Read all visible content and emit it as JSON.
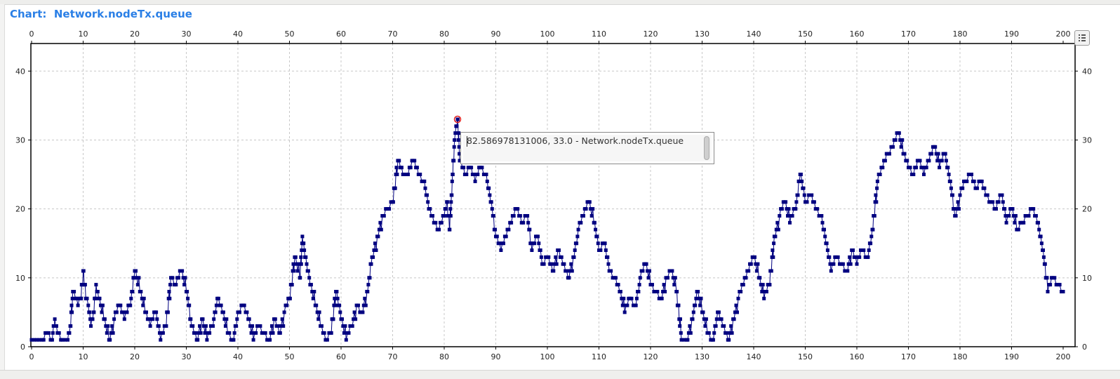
{
  "window": {
    "title_prefix": "Chart:",
    "title_name": "Network.nodeTx.queue"
  },
  "tooltip": {
    "text": "82.586978131006, 33.0 - Network.nodeTx.queue"
  },
  "legend_button": {
    "icon": "list-icon"
  },
  "colors": {
    "series": "#000080",
    "title": "#2a7fe6",
    "highlight": "#e02020",
    "grid": "#c8c8c8"
  },
  "chart_data": {
    "type": "line",
    "title": "Network.nodeTx.queue",
    "xlim": [
      0,
      200
    ],
    "ylim": [
      0,
      44
    ],
    "x_ticks": [
      0,
      10,
      20,
      30,
      40,
      50,
      60,
      70,
      80,
      90,
      100,
      110,
      120,
      130,
      140,
      150,
      160,
      170,
      180,
      190,
      200
    ],
    "y_ticks": [
      0,
      10,
      20,
      30,
      40
    ],
    "grid": true,
    "axes": "top-bottom-left-right",
    "highlight_point": {
      "x": 82.586978131006,
      "y": 33.0
    },
    "series": [
      {
        "name": "Network.nodeTx.queue",
        "markers": "square",
        "points": [
          [
            0,
            1
          ],
          [
            2,
            1
          ],
          [
            3,
            2
          ],
          [
            4,
            1
          ],
          [
            4.5,
            4
          ],
          [
            5,
            2
          ],
          [
            6,
            1
          ],
          [
            7,
            1
          ],
          [
            7.5,
            3
          ],
          [
            8,
            8
          ],
          [
            8.5,
            7
          ],
          [
            9,
            6
          ],
          [
            9.5,
            7
          ],
          [
            10,
            11
          ],
          [
            10.5,
            7
          ],
          [
            11,
            6
          ],
          [
            11.5,
            3
          ],
          [
            12,
            5
          ],
          [
            12.5,
            9
          ],
          [
            13,
            7
          ],
          [
            14,
            4
          ],
          [
            15,
            1
          ],
          [
            16,
            4
          ],
          [
            17,
            6
          ],
          [
            18,
            4
          ],
          [
            19,
            6
          ],
          [
            20,
            11
          ],
          [
            21,
            8
          ],
          [
            22,
            5
          ],
          [
            23,
            3
          ],
          [
            24,
            5
          ],
          [
            25,
            1
          ],
          [
            26,
            3
          ],
          [
            27,
            10
          ],
          [
            28,
            9
          ],
          [
            29,
            11
          ],
          [
            30,
            8
          ],
          [
            31,
            3
          ],
          [
            32,
            1
          ],
          [
            33,
            4
          ],
          [
            34,
            1
          ],
          [
            35,
            3
          ],
          [
            36,
            7
          ],
          [
            37,
            5
          ],
          [
            38,
            2
          ],
          [
            39,
            1
          ],
          [
            40,
            5
          ],
          [
            41,
            6
          ],
          [
            42,
            4
          ],
          [
            43,
            1
          ],
          [
            44,
            3
          ],
          [
            45,
            2
          ],
          [
            46,
            1
          ],
          [
            47,
            4
          ],
          [
            48,
            2
          ],
          [
            49,
            5
          ],
          [
            50,
            7
          ],
          [
            51,
            13
          ],
          [
            52,
            10
          ],
          [
            52.5,
            16
          ],
          [
            53,
            13
          ],
          [
            54,
            9
          ],
          [
            55,
            6
          ],
          [
            56,
            3
          ],
          [
            57,
            1
          ],
          [
            58,
            2
          ],
          [
            59,
            8
          ],
          [
            60,
            4
          ],
          [
            61,
            1
          ],
          [
            62,
            3
          ],
          [
            63,
            6
          ],
          [
            64,
            5
          ],
          [
            65,
            8
          ],
          [
            66,
            13
          ],
          [
            67,
            16
          ],
          [
            68,
            19
          ],
          [
            69,
            20
          ],
          [
            70,
            21
          ],
          [
            71,
            27
          ],
          [
            72,
            25
          ],
          [
            73,
            25
          ],
          [
            74,
            27
          ],
          [
            75,
            25
          ],
          [
            76,
            24
          ],
          [
            77,
            20
          ],
          [
            78,
            18
          ],
          [
            79,
            17
          ],
          [
            80,
            19
          ],
          [
            80.5,
            21
          ],
          [
            81,
            17
          ],
          [
            82,
            30
          ],
          [
            82.586978131006,
            33
          ],
          [
            83,
            27
          ],
          [
            84,
            25
          ],
          [
            85,
            26
          ],
          [
            86,
            24
          ],
          [
            87,
            26
          ],
          [
            88,
            25
          ],
          [
            89,
            21
          ],
          [
            90,
            16
          ],
          [
            91,
            14
          ],
          [
            92,
            16
          ],
          [
            93,
            18
          ],
          [
            94,
            20
          ],
          [
            95,
            18
          ],
          [
            96,
            19
          ],
          [
            97,
            14
          ],
          [
            98,
            16
          ],
          [
            99,
            12
          ],
          [
            100,
            13
          ],
          [
            101,
            11
          ],
          [
            102,
            14
          ],
          [
            103,
            12
          ],
          [
            104,
            10
          ],
          [
            105,
            13
          ],
          [
            106,
            17
          ],
          [
            107,
            19
          ],
          [
            108,
            21
          ],
          [
            109,
            18
          ],
          [
            110,
            14
          ],
          [
            111,
            15
          ],
          [
            112,
            11
          ],
          [
            113,
            10
          ],
          [
            114,
            8
          ],
          [
            115,
            5
          ],
          [
            116,
            7
          ],
          [
            117,
            6
          ],
          [
            118,
            10
          ],
          [
            119,
            12
          ],
          [
            120,
            9
          ],
          [
            121,
            8
          ],
          [
            122,
            7
          ],
          [
            123,
            10
          ],
          [
            124,
            11
          ],
          [
            125,
            8
          ],
          [
            126,
            1
          ],
          [
            127,
            1
          ],
          [
            128,
            4
          ],
          [
            129,
            8
          ],
          [
            130,
            5
          ],
          [
            131,
            2
          ],
          [
            132,
            1
          ],
          [
            133,
            5
          ],
          [
            134,
            3
          ],
          [
            135,
            1
          ],
          [
            136,
            4
          ],
          [
            137,
            7
          ],
          [
            138,
            9
          ],
          [
            139,
            11
          ],
          [
            140,
            13
          ],
          [
            141,
            10
          ],
          [
            142,
            7
          ],
          [
            143,
            9
          ],
          [
            144,
            16
          ],
          [
            145,
            19
          ],
          [
            146,
            21
          ],
          [
            147,
            18
          ],
          [
            148,
            20
          ],
          [
            149,
            25
          ],
          [
            150,
            21
          ],
          [
            151,
            22
          ],
          [
            152,
            20
          ],
          [
            153,
            19
          ],
          [
            154,
            15
          ],
          [
            155,
            11
          ],
          [
            156,
            13
          ],
          [
            157,
            12
          ],
          [
            158,
            11
          ],
          [
            159,
            14
          ],
          [
            160,
            12
          ],
          [
            161,
            14
          ],
          [
            162,
            13
          ],
          [
            163,
            17
          ],
          [
            164,
            24
          ],
          [
            165,
            26
          ],
          [
            166,
            28
          ],
          [
            167,
            29
          ],
          [
            168,
            31
          ],
          [
            169,
            28
          ],
          [
            170,
            26
          ],
          [
            171,
            25
          ],
          [
            172,
            27
          ],
          [
            173,
            25
          ],
          [
            174,
            27
          ],
          [
            175,
            29
          ],
          [
            176,
            26
          ],
          [
            177,
            28
          ],
          [
            178,
            24
          ],
          [
            179,
            19
          ],
          [
            180,
            22
          ],
          [
            181,
            24
          ],
          [
            182,
            25
          ],
          [
            183,
            23
          ],
          [
            184,
            24
          ],
          [
            185,
            22
          ],
          [
            186,
            21
          ],
          [
            187,
            20
          ],
          [
            188,
            22
          ],
          [
            189,
            18
          ],
          [
            190,
            20
          ],
          [
            191,
            17
          ],
          [
            192,
            18
          ],
          [
            193,
            19
          ],
          [
            194,
            20
          ],
          [
            195,
            18
          ],
          [
            196,
            14
          ],
          [
            197,
            8
          ],
          [
            198,
            10
          ],
          [
            199,
            9
          ],
          [
            200,
            8
          ]
        ]
      }
    ]
  }
}
